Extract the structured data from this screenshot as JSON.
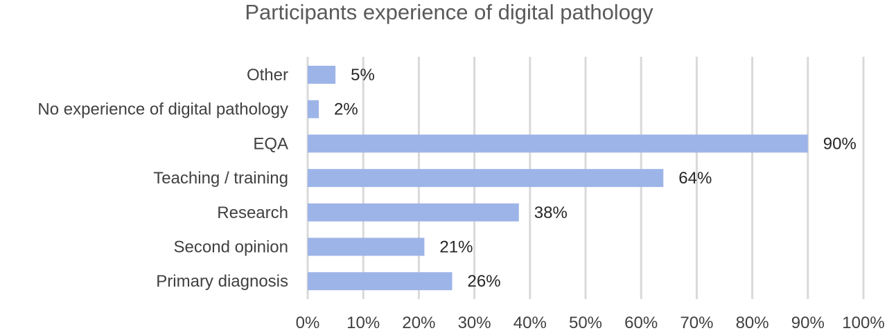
{
  "chart_data": {
    "type": "bar",
    "orientation": "horizontal",
    "title": "Participants experience of digital pathology",
    "categories": [
      "Other",
      "No experience of digital pathology",
      "EQA",
      "Teaching / training",
      "Research",
      "Second opinion",
      "Primary diagnosis"
    ],
    "values": [
      5,
      2,
      90,
      64,
      38,
      21,
      26
    ],
    "data_labels": [
      "5%",
      "2%",
      "90%",
      "64%",
      "38%",
      "21%",
      "26%"
    ],
    "x_ticks": [
      "0%",
      "10%",
      "20%",
      "30%",
      "40%",
      "50%",
      "60%",
      "70%",
      "80%",
      "90%",
      "100%"
    ],
    "xlim": [
      0,
      100
    ],
    "xlabel": "",
    "ylabel": "",
    "grid": "vertical",
    "legend": "none",
    "colors": {
      "bar": "#9db4e8",
      "grid": "#d9d9d9",
      "text": "#404040",
      "title": "#595959"
    }
  }
}
